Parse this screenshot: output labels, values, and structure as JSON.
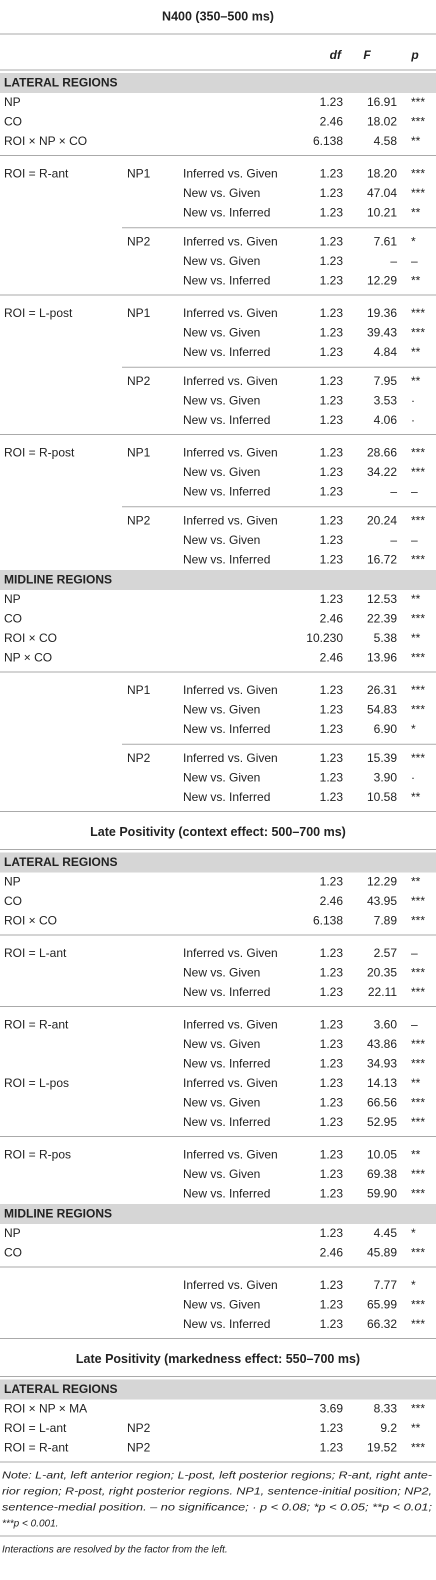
{
  "table": {
    "parts": [
      {
        "title": "N400 (350–500 ms)",
        "columns": [
          "df",
          "F",
          "p"
        ],
        "regions": [
          {
            "label": "LATERAL REGIONS",
            "blocks": [
              [
                [
                  [
                    "NP",
                    null,
                    null,
                    "1.23",
                    "16.91",
                    "***"
                  ],
                  [
                    "CO",
                    null,
                    null,
                    "2.46",
                    "18.02",
                    "***"
                  ],
                  [
                    "ROI × NP × CO",
                    null,
                    null,
                    "6.138",
                    "4.58",
                    "**"
                  ]
                ]
              ],
              [
                [
                  [
                    "ROI = R-ant",
                    "NP1",
                    "Inferred vs. Given",
                    "1.23",
                    "18.20",
                    "***"
                  ],
                  [
                    null,
                    null,
                    "New vs. Given",
                    "1.23",
                    "47.04",
                    "***"
                  ],
                  [
                    null,
                    null,
                    "New vs. Inferred",
                    "1.23",
                    "10.21",
                    "**"
                  ]
                ],
                [
                  [
                    null,
                    "NP2",
                    "Inferred vs. Given",
                    "1.23",
                    "7.61",
                    "*"
                  ],
                  [
                    null,
                    null,
                    "New vs. Given",
                    "1.23",
                    "–",
                    "–"
                  ],
                  [
                    null,
                    null,
                    "New vs. Inferred",
                    "1.23",
                    "12.29",
                    "**"
                  ]
                ]
              ],
              [
                [
                  [
                    "ROI = L-post",
                    "NP1",
                    "Inferred vs. Given",
                    "1.23",
                    "19.36",
                    "***"
                  ],
                  [
                    null,
                    null,
                    "New vs. Given",
                    "1.23",
                    "39.43",
                    "***"
                  ],
                  [
                    null,
                    null,
                    "New vs. Inferred",
                    "1.23",
                    "4.84",
                    "**"
                  ]
                ],
                [
                  [
                    null,
                    "NP2",
                    "Inferred vs. Given",
                    "1.23",
                    "7.95",
                    "**"
                  ],
                  [
                    null,
                    null,
                    "New vs. Given",
                    "1.23",
                    "3.53",
                    "·"
                  ],
                  [
                    null,
                    null,
                    "New vs. Inferred",
                    "1.23",
                    "4.06",
                    "·"
                  ]
                ]
              ],
              [
                [
                  [
                    "ROI = R-post",
                    "NP1",
                    "Inferred vs. Given",
                    "1.23",
                    "28.66",
                    "***"
                  ],
                  [
                    null,
                    null,
                    "New vs. Given",
                    "1.23",
                    "34.22",
                    "***"
                  ],
                  [
                    null,
                    null,
                    "New vs. Inferred",
                    "1.23",
                    "–",
                    "–"
                  ]
                ],
                [
                  [
                    null,
                    "NP2",
                    "Inferred vs. Given",
                    "1.23",
                    "20.24",
                    "***"
                  ],
                  [
                    null,
                    null,
                    "New vs. Given",
                    "1.23",
                    "–",
                    "–"
                  ],
                  [
                    null,
                    null,
                    "New vs. Inferred",
                    "1.23",
                    "16.72",
                    "***"
                  ]
                ]
              ]
            ]
          },
          {
            "label": "MIDLINE REGIONS",
            "blocks": [
              [
                [
                  [
                    "NP",
                    null,
                    null,
                    "1.23",
                    "12.53",
                    "**"
                  ],
                  [
                    "CO",
                    null,
                    null,
                    "2.46",
                    "22.39",
                    "***"
                  ],
                  [
                    "ROI × CO",
                    null,
                    null,
                    "10.230",
                    "5.38",
                    "**"
                  ],
                  [
                    "NP × CO",
                    null,
                    null,
                    "2.46",
                    "13.96",
                    "***"
                  ]
                ]
              ],
              [
                [
                  [
                    null,
                    "NP1",
                    "Inferred vs. Given",
                    "1.23",
                    "26.31",
                    "***"
                  ],
                  [
                    null,
                    null,
                    "New vs. Given",
                    "1.23",
                    "54.83",
                    "***"
                  ],
                  [
                    null,
                    null,
                    "New vs. Inferred",
                    "1.23",
                    "6.90",
                    "*"
                  ]
                ],
                [
                  [
                    null,
                    "NP2",
                    "Inferred vs. Given",
                    "1.23",
                    "15.39",
                    "***"
                  ],
                  [
                    null,
                    null,
                    "New vs. Given",
                    "1.23",
                    "3.90",
                    "·"
                  ],
                  [
                    null,
                    null,
                    "New vs. Inferred",
                    "1.23",
                    "10.58",
                    "**"
                  ]
                ]
              ]
            ]
          }
        ]
      },
      {
        "title": "Late Positivity (context effect: 500–700 ms)",
        "regions": [
          {
            "label": "LATERAL REGIONS",
            "blocks": [
              [
                [
                  [
                    "NP",
                    null,
                    null,
                    "1.23",
                    "12.29",
                    "**"
                  ],
                  [
                    "CO",
                    null,
                    null,
                    "2.46",
                    "43.95",
                    "***"
                  ],
                  [
                    "ROI × CO",
                    null,
                    null,
                    "6.138",
                    "7.89",
                    "***"
                  ]
                ]
              ],
              [
                [
                  [
                    "ROI = L-ant",
                    null,
                    "Inferred vs. Given",
                    "1.23",
                    "2.57",
                    "–"
                  ],
                  [
                    null,
                    null,
                    "New vs. Given",
                    "1.23",
                    "20.35",
                    "***"
                  ],
                  [
                    null,
                    null,
                    "New vs. Inferred",
                    "1.23",
                    "22.11",
                    "***"
                  ]
                ]
              ],
              [
                [
                  [
                    "ROI = R-ant",
                    null,
                    "Inferred vs. Given",
                    "1.23",
                    "3.60",
                    "–"
                  ],
                  [
                    null,
                    null,
                    "New vs. Given",
                    "1.23",
                    "43.86",
                    "***"
                  ],
                  [
                    null,
                    null,
                    "New vs. Inferred",
                    "1.23",
                    "34.93",
                    "***"
                  ],
                  [
                    "ROI = L-pos",
                    null,
                    "Inferred vs. Given",
                    "1.23",
                    "14.13",
                    "**"
                  ],
                  [
                    null,
                    null,
                    "New vs. Given",
                    "1.23",
                    "66.56",
                    "***"
                  ],
                  [
                    null,
                    null,
                    "New vs. Inferred",
                    "1.23",
                    "52.95",
                    "***"
                  ]
                ]
              ],
              [
                [
                  [
                    "ROI = R-pos",
                    null,
                    "Inferred vs. Given",
                    "1.23",
                    "10.05",
                    "**"
                  ],
                  [
                    null,
                    null,
                    "New vs. Given",
                    "1.23",
                    "69.38",
                    "***"
                  ],
                  [
                    null,
                    null,
                    "New vs. Inferred",
                    "1.23",
                    "59.90",
                    "***"
                  ]
                ]
              ]
            ]
          },
          {
            "label": "MIDLINE REGIONS",
            "blocks": [
              [
                [
                  [
                    "NP",
                    null,
                    null,
                    "1.23",
                    "4.45",
                    "*"
                  ],
                  [
                    "CO",
                    null,
                    null,
                    "2.46",
                    "45.89",
                    "***"
                  ]
                ]
              ],
              [
                [
                  [
                    null,
                    null,
                    "Inferred vs. Given",
                    "1.23",
                    "7.77",
                    "*"
                  ],
                  [
                    null,
                    null,
                    "New vs. Given",
                    "1.23",
                    "65.99",
                    "***"
                  ],
                  [
                    null,
                    null,
                    "New vs. Inferred",
                    "1.23",
                    "66.32",
                    "***"
                  ]
                ]
              ]
            ]
          }
        ]
      },
      {
        "title": "Late Positivity (markedness effect: 550–700 ms)",
        "regions": [
          {
            "label": "LATERAL REGIONS",
            "blocks": [
              [
                [
                  [
                    "ROI × NP × MA",
                    null,
                    null,
                    "3.69",
                    "8.33",
                    "***"
                  ],
                  [
                    "ROI = L-ant",
                    "NP2",
                    null,
                    "1.23",
                    "9.2",
                    "**"
                  ],
                  [
                    "ROI = R-ant",
                    "NP2",
                    null,
                    "1.23",
                    "19.52",
                    "***"
                  ]
                ]
              ]
            ]
          }
        ]
      }
    ]
  },
  "note": [
    "Note: L-ant, left anterior region; L-post, left posterior regions; R-ant, right ante-",
    "rior region; R-post, right posterior regions. NP1, sentence-initial position; NP2,",
    "sentence-medial position. – no significance; · p < 0.08; *p < 0.05; **p < 0.01;",
    "***p < 0.001."
  ],
  "footer": "Interactions are resolved by the factor from the left."
}
